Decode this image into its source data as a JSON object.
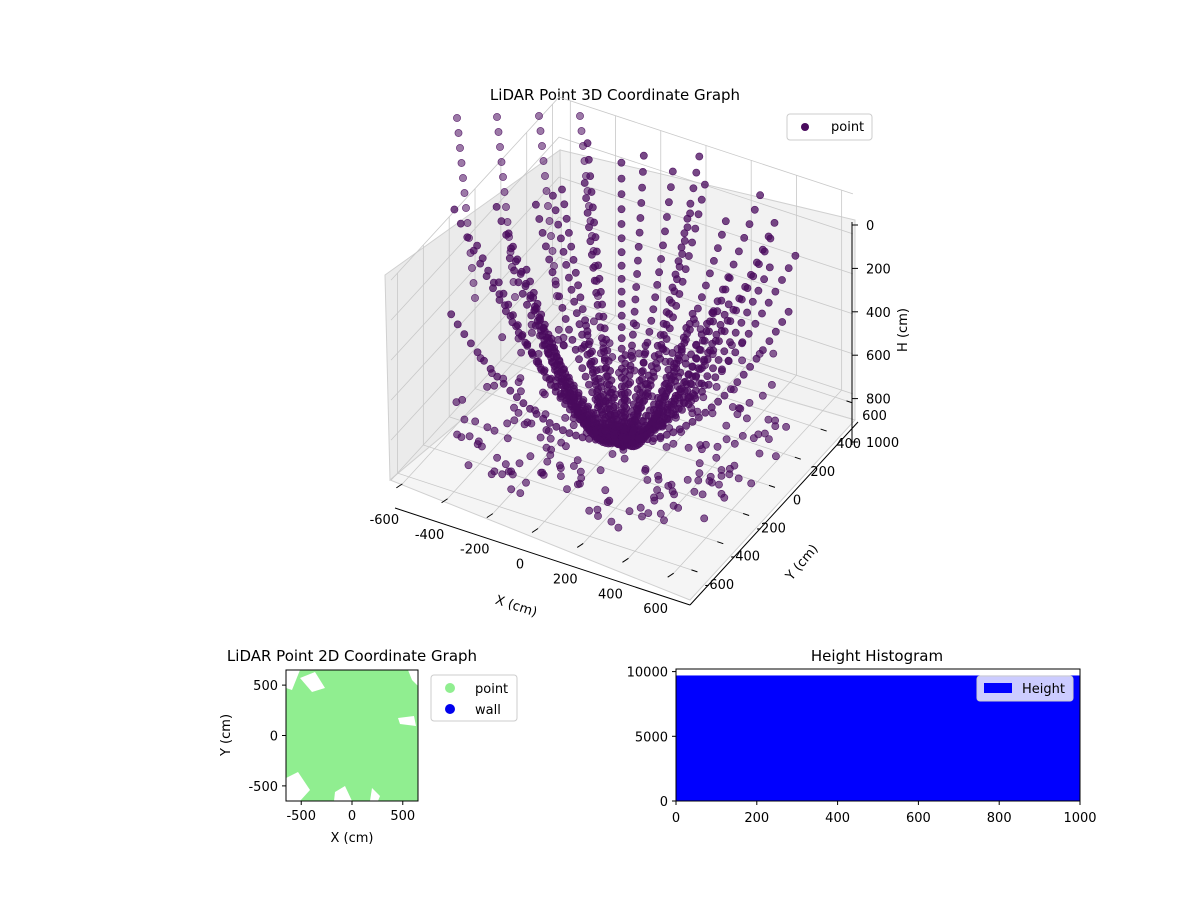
{
  "chart_data": [
    {
      "type": "scatter3d",
      "title": "LiDAR Point 3D Coordinate Graph",
      "xlabel": "X (cm)",
      "ylabel": "Y (cm)",
      "zlabel": "H (cm)",
      "x_ticks": [
        -600,
        -400,
        -200,
        0,
        200,
        400,
        600
      ],
      "y_ticks": [
        -600,
        -400,
        -200,
        0,
        200,
        400,
        600
      ],
      "z_ticks": [
        0,
        200,
        400,
        600,
        800,
        1000
      ],
      "xlim": [
        -650,
        650
      ],
      "ylim": [
        -650,
        650
      ],
      "zlim": [
        0,
        1000
      ],
      "z_inverted": true,
      "grid": true,
      "legend": {
        "placement": "top-right",
        "entries": [
          {
            "name": "point",
            "color": "#4a0b5e"
          }
        ]
      },
      "series": [
        {
          "name": "point",
          "color": "#4a0b5e"
        }
      ]
    },
    {
      "type": "scatter",
      "title": "LiDAR Point 2D Coordinate Graph",
      "xlabel": "X (cm)",
      "ylabel": "Y (cm)",
      "x_ticks": [
        -500,
        0,
        500
      ],
      "y_ticks": [
        -500,
        0,
        500
      ],
      "xlim": [
        -650,
        650
      ],
      "ylim": [
        -650,
        650
      ],
      "legend": {
        "placement": "outside-right",
        "entries": [
          {
            "name": "point",
            "color": "#90ee90"
          },
          {
            "name": "wall",
            "color": "#0000ee"
          }
        ]
      }
    },
    {
      "type": "bar",
      "title": "Height Histogram",
      "x_ticks": [
        0,
        200,
        400,
        600,
        800,
        1000
      ],
      "y_ticks": [
        0,
        5000,
        10000
      ],
      "xlim": [
        0,
        1000
      ],
      "ylim": [
        0,
        10200
      ],
      "series": [
        {
          "name": "Height",
          "color": "#0000ff",
          "bin_range": [
            0,
            1000
          ],
          "count_per_bin": 9700
        }
      ],
      "legend": {
        "placement": "top-right",
        "entries": [
          {
            "name": "Height",
            "color": "#0000ff"
          }
        ]
      }
    }
  ]
}
